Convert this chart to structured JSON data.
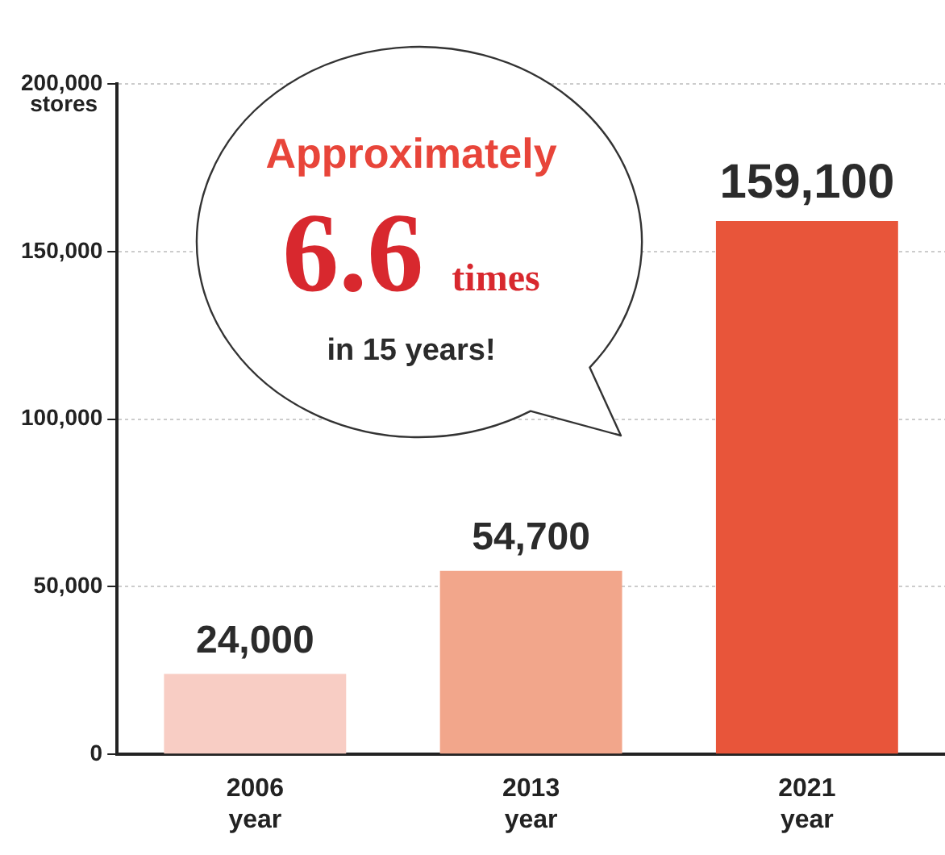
{
  "chart_data": {
    "type": "bar",
    "ylabel": "stores",
    "categories": [
      "2006 year",
      "2013 year",
      "2021 year"
    ],
    "values": [
      24000,
      54700,
      159100
    ],
    "colors": [
      "#f8cdc4",
      "#f2a68b",
      "#e8553a"
    ],
    "value_labels": [
      "24,000",
      "54,700",
      "159,100"
    ],
    "ylim": [
      0,
      200000
    ],
    "yticks": [
      0,
      {
        "value": 50000,
        "label": "50,000"
      },
      {
        "value": 100000,
        "label": "100,000"
      },
      {
        "value": 150000,
        "label": "150,000"
      },
      {
        "value": 200000,
        "label": "200,000"
      }
    ],
    "grid": "y",
    "legend": false,
    "annotations": [
      "Approximately",
      "6.6 times",
      "in 15 years!"
    ]
  }
}
